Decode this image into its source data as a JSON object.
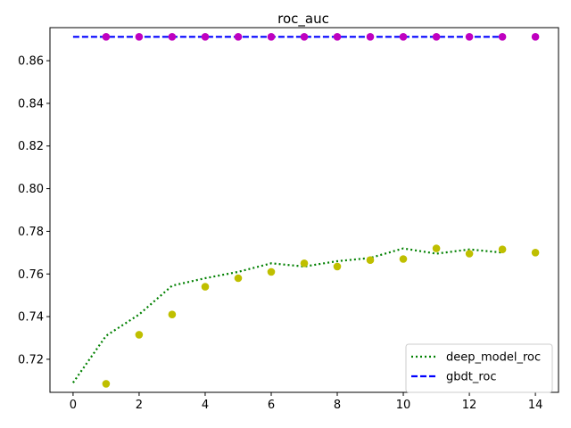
{
  "chart_data": {
    "type": "line",
    "title": "roc_auc",
    "xlabel": "",
    "ylabel": "",
    "xlim": [
      -0.7,
      14.7
    ],
    "ylim": [
      0.7045,
      0.8755
    ],
    "xticks": [
      0,
      2,
      4,
      6,
      8,
      10,
      12,
      14
    ],
    "yticks": [
      0.72,
      0.74,
      0.76,
      0.78,
      0.8,
      0.82,
      0.84,
      0.86
    ],
    "grid": false,
    "legend_position": "lower-right",
    "series": [
      {
        "name": "deep_model_roc",
        "kind": "line",
        "style": "dotted",
        "color": "#008000",
        "x": [
          0,
          1,
          2,
          3,
          4,
          5,
          6,
          7,
          8,
          9,
          10,
          11,
          12,
          13
        ],
        "y": [
          0.709,
          0.731,
          0.741,
          0.7545,
          0.758,
          0.761,
          0.765,
          0.7635,
          0.766,
          0.7675,
          0.772,
          0.7695,
          0.7715,
          0.77
        ]
      },
      {
        "name": "gbdt_roc",
        "kind": "line",
        "style": "dashed",
        "color": "#0000ff",
        "x": [
          0,
          1,
          2,
          3,
          4,
          5,
          6,
          7,
          8,
          9,
          10,
          11,
          12,
          13
        ],
        "y": [
          0.8712,
          0.8712,
          0.8712,
          0.8712,
          0.8712,
          0.8712,
          0.8712,
          0.8712,
          0.8712,
          0.8712,
          0.8712,
          0.8712,
          0.8712,
          0.8712
        ]
      },
      {
        "kind": "scatter",
        "color": "#bfbf00",
        "x": [
          1,
          2,
          3,
          4,
          5,
          6,
          7,
          8,
          9,
          10,
          11,
          12,
          13,
          14
        ],
        "y": [
          0.7085,
          0.7315,
          0.741,
          0.754,
          0.758,
          0.761,
          0.765,
          0.7635,
          0.7665,
          0.767,
          0.772,
          0.7695,
          0.7715,
          0.77
        ]
      },
      {
        "kind": "scatter",
        "color": "#bf00bf",
        "x": [
          1,
          2,
          3,
          4,
          5,
          6,
          7,
          8,
          9,
          10,
          11,
          12,
          13,
          14
        ],
        "y": [
          0.8712,
          0.8712,
          0.8712,
          0.8712,
          0.8712,
          0.8712,
          0.8712,
          0.8712,
          0.8712,
          0.8712,
          0.8712,
          0.8712,
          0.8712,
          0.8712
        ]
      }
    ]
  }
}
